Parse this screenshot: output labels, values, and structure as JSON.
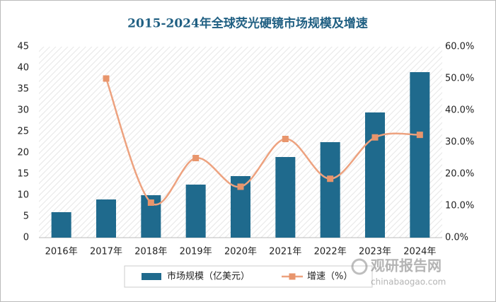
{
  "chart_data": {
    "type": "bar-line",
    "title": "2015-2024年全球荧光硬镜市场规模及增速",
    "categories": [
      "2016年",
      "2017年",
      "2018年",
      "2019年",
      "2020年",
      "2021年",
      "2022年",
      "2023年",
      "2024年"
    ],
    "series": [
      {
        "name": "市场规模（亿美元）",
        "type": "bar",
        "color": "#1f6a8d",
        "values": [
          6.0,
          9.0,
          10.0,
          12.5,
          14.5,
          19.0,
          22.5,
          29.5,
          39.0
        ]
      },
      {
        "name": "增速（%）",
        "type": "line",
        "axis": "y2",
        "color": "#eda27f",
        "values": [
          null,
          50.0,
          11.0,
          25.0,
          16.0,
          31.0,
          18.5,
          31.5,
          32.3
        ]
      }
    ],
    "ylim": [
      0,
      45
    ],
    "yticks": [
      0,
      5,
      10,
      15,
      20,
      25,
      30,
      35,
      40,
      45
    ],
    "y2lim": [
      0,
      60
    ],
    "y2ticks": [
      {
        "value": 0,
        "label": "0.0%"
      },
      {
        "value": 10,
        "label": "10.0%"
      },
      {
        "value": 20,
        "label": "20.0%"
      },
      {
        "value": 30,
        "label": "30.0%"
      },
      {
        "value": 40,
        "label": "40.0%"
      },
      {
        "value": 50,
        "label": "50.0%"
      },
      {
        "value": 60,
        "label": "60.0%"
      }
    ],
    "legend": "bottom",
    "watermark": {
      "name": "观研报告网",
      "url": "chinabaogao.com"
    }
  }
}
